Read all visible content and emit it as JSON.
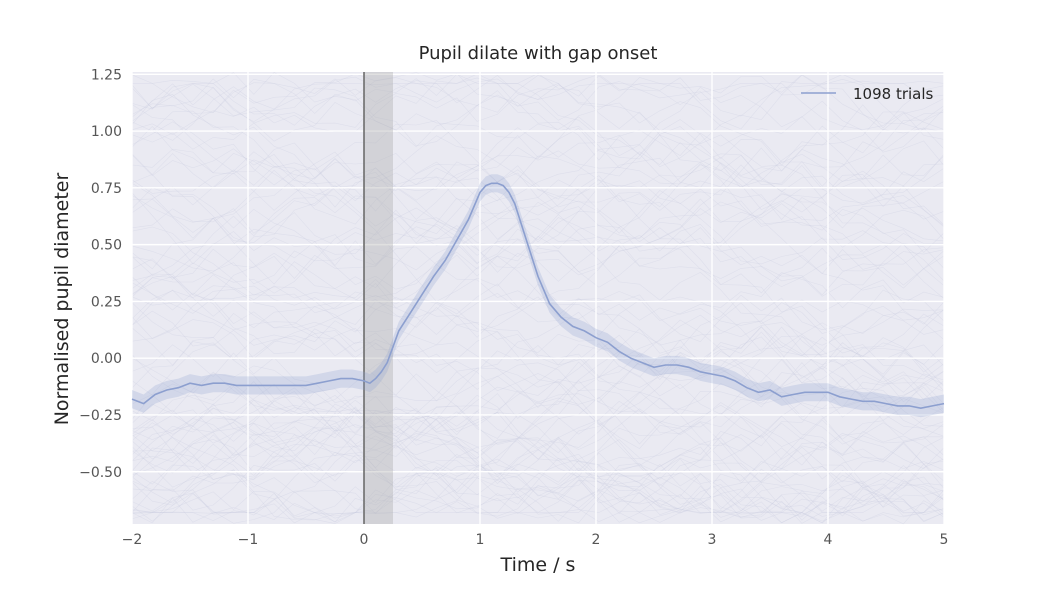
{
  "chart_data": {
    "type": "line",
    "title": "Pupil dilate with gap onset",
    "xlabel": "Time / s",
    "ylabel": "Normalised pupil diameter",
    "xlim": [
      -2,
      5
    ],
    "ylim": [
      -0.73,
      1.26
    ],
    "xticks": [
      -2,
      -1,
      0,
      1,
      2,
      3,
      4,
      5
    ],
    "xtick_labels": [
      "−2",
      "−1",
      "0",
      "1",
      "2",
      "3",
      "4",
      "5"
    ],
    "yticks": [
      -0.5,
      -0.25,
      0.0,
      0.25,
      0.5,
      0.75,
      1.0,
      1.25
    ],
    "ytick_labels": [
      "−0.50",
      "−0.25",
      "0.00",
      "0.25",
      "0.50",
      "0.75",
      "1.00",
      "1.25"
    ],
    "grid": true,
    "legend_position": "top-right",
    "onset_line_x": 0,
    "shaded_interval": [
      0,
      0.25
    ],
    "series": [
      {
        "name": "1098 trials",
        "color": "#8c9fcf",
        "band_halfwidth": 0.04,
        "x": [
          -2.0,
          -1.9,
          -1.8,
          -1.7,
          -1.6,
          -1.5,
          -1.4,
          -1.3,
          -1.2,
          -1.1,
          -1.0,
          -0.9,
          -0.8,
          -0.7,
          -0.6,
          -0.5,
          -0.4,
          -0.3,
          -0.2,
          -0.1,
          0.0,
          0.05,
          0.1,
          0.15,
          0.2,
          0.25,
          0.3,
          0.4,
          0.5,
          0.6,
          0.7,
          0.8,
          0.9,
          1.0,
          1.05,
          1.1,
          1.15,
          1.2,
          1.25,
          1.3,
          1.4,
          1.5,
          1.6,
          1.7,
          1.8,
          1.9,
          2.0,
          2.1,
          2.2,
          2.3,
          2.4,
          2.5,
          2.6,
          2.7,
          2.8,
          2.9,
          3.0,
          3.1,
          3.2,
          3.3,
          3.4,
          3.5,
          3.6,
          3.7,
          3.8,
          3.9,
          4.0,
          4.1,
          4.2,
          4.3,
          4.4,
          4.5,
          4.6,
          4.7,
          4.8,
          4.9,
          5.0
        ],
        "y": [
          -0.18,
          -0.2,
          -0.16,
          -0.14,
          -0.13,
          -0.11,
          -0.12,
          -0.11,
          -0.11,
          -0.12,
          -0.12,
          -0.12,
          -0.12,
          -0.12,
          -0.12,
          -0.12,
          -0.11,
          -0.1,
          -0.09,
          -0.09,
          -0.1,
          -0.11,
          -0.09,
          -0.06,
          -0.02,
          0.05,
          0.12,
          0.2,
          0.28,
          0.36,
          0.43,
          0.52,
          0.61,
          0.73,
          0.76,
          0.77,
          0.77,
          0.76,
          0.73,
          0.68,
          0.52,
          0.36,
          0.24,
          0.18,
          0.14,
          0.12,
          0.09,
          0.07,
          0.03,
          0.0,
          -0.02,
          -0.04,
          -0.03,
          -0.03,
          -0.04,
          -0.06,
          -0.07,
          -0.08,
          -0.1,
          -0.13,
          -0.15,
          -0.14,
          -0.17,
          -0.16,
          -0.15,
          -0.15,
          -0.15,
          -0.17,
          -0.18,
          -0.19,
          -0.19,
          -0.2,
          -0.21,
          -0.21,
          -0.22,
          -0.21,
          -0.2
        ]
      }
    ]
  }
}
